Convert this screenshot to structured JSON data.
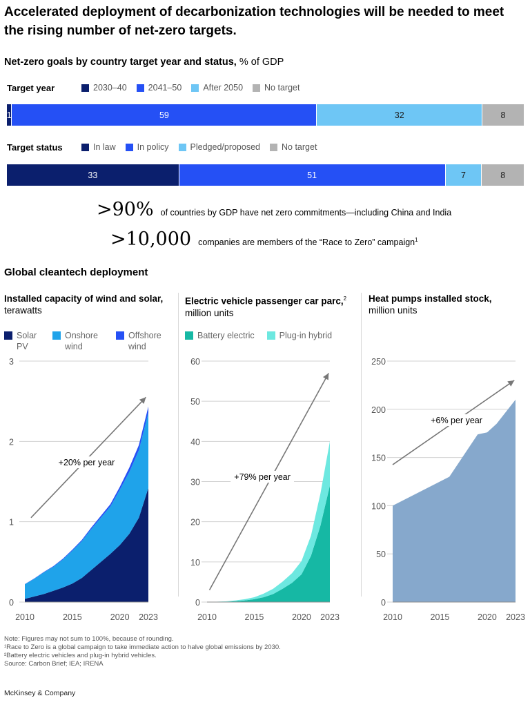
{
  "headline": "Accelerated deployment of decarbonization technologies will be needed to meet the rising number of net-zero targets.",
  "subtitle": {
    "bold": "Net-zero goals by country target year and status,",
    "unit": "% of GDP"
  },
  "target_year": {
    "label": "Target year",
    "legend": [
      "2030–40",
      "2041–50",
      "After 2050",
      "No target"
    ],
    "colors": [
      "#0b1f6d",
      "#2550f5",
      "#6ec6f5",
      "#b3b3b3"
    ],
    "text_colors": [
      "#ffffff",
      "#ffffff",
      "#1a1a1a",
      "#1a1a1a"
    ],
    "values": [
      1,
      59,
      32,
      8
    ],
    "labels": [
      "1",
      "59",
      "32",
      "8"
    ]
  },
  "target_status": {
    "label": "Target status",
    "legend": [
      "In law",
      "In policy",
      "Pledged/proposed",
      "No target"
    ],
    "colors": [
      "#0b1f6d",
      "#2550f5",
      "#6ec6f5",
      "#b3b3b3"
    ],
    "text_colors": [
      "#ffffff",
      "#ffffff",
      "#1a1a1a",
      "#1a1a1a"
    ],
    "values": [
      33,
      51,
      7,
      8
    ],
    "labels": [
      "33",
      "51",
      "7",
      "8"
    ]
  },
  "stats": [
    {
      "big": ">90%",
      "text": "of countries by GDP have net zero commitments—including China and India",
      "sup": ""
    },
    {
      "big": ">10,000",
      "text": "companies are members of the “Race to Zero” campaign",
      "sup": "1"
    }
  ],
  "section_title": "Global cleantech deployment",
  "chart_data": [
    {
      "type": "area",
      "title": "Installed capacity of wind and solar,",
      "title_sup": "",
      "unit": "terawatts",
      "x": [
        2010,
        2011,
        2012,
        2013,
        2014,
        2015,
        2016,
        2017,
        2018,
        2019,
        2020,
        2021,
        2022,
        2023
      ],
      "x_ticks": [
        "2010",
        "2015",
        "2020",
        "2023"
      ],
      "ylim": [
        0,
        3
      ],
      "y_ticks": [
        "0",
        "1",
        "2",
        "3"
      ],
      "stacked": true,
      "series": [
        {
          "name": "Solar PV",
          "color": "#0b1f6d",
          "values": [
            0.04,
            0.07,
            0.1,
            0.14,
            0.18,
            0.23,
            0.3,
            0.4,
            0.5,
            0.6,
            0.71,
            0.85,
            1.05,
            1.42
          ]
        },
        {
          "name": "Onshore wind",
          "color": "#1fa3ea",
          "values": [
            0.18,
            0.22,
            0.27,
            0.3,
            0.35,
            0.41,
            0.46,
            0.51,
            0.55,
            0.59,
            0.69,
            0.77,
            0.84,
            0.94
          ]
        },
        {
          "name": "Offshore wind",
          "color": "#2550f5",
          "values": [
            0.003,
            0.004,
            0.005,
            0.007,
            0.009,
            0.012,
            0.014,
            0.019,
            0.023,
            0.028,
            0.035,
            0.055,
            0.065,
            0.075
          ]
        }
      ],
      "annotation": "+20% per year"
    },
    {
      "type": "area",
      "title": "Electric vehicle passenger car parc,",
      "title_sup": "2",
      "unit": "million units",
      "x": [
        2010,
        2011,
        2012,
        2013,
        2014,
        2015,
        2016,
        2017,
        2018,
        2019,
        2020,
        2021,
        2022,
        2023
      ],
      "x_ticks": [
        "2010",
        "2015",
        "2020",
        "2023"
      ],
      "ylim": [
        0,
        60
      ],
      "y_ticks": [
        "0",
        "10",
        "20",
        "30",
        "40",
        "50",
        "60"
      ],
      "stacked": true,
      "series": [
        {
          "name": "Battery electric",
          "color": "#16b8a4",
          "values": [
            0.02,
            0.05,
            0.1,
            0.2,
            0.4,
            0.7,
            1.2,
            2.0,
            3.3,
            4.8,
            6.9,
            11.5,
            19.0,
            29.0
          ]
        },
        {
          "name": "Plug-in hybrid",
          "color": "#6de8e0",
          "values": [
            0.01,
            0.03,
            0.08,
            0.2,
            0.3,
            0.5,
            0.9,
            1.3,
            1.8,
            2.4,
            3.3,
            5.0,
            8.0,
            11.0
          ]
        }
      ],
      "annotation": "+79% per year"
    },
    {
      "type": "area",
      "title": "Heat pumps installed stock,",
      "title_sup": "",
      "unit": "million units",
      "x": [
        2010,
        2016,
        2019,
        2020,
        2021,
        2023
      ],
      "x_ticks": [
        "2010",
        "2015",
        "2020",
        "2023"
      ],
      "ylim": [
        0,
        250
      ],
      "y_ticks": [
        "0",
        "50",
        "100",
        "150",
        "200",
        "250"
      ],
      "stacked": false,
      "series": [
        {
          "name": "Heat pumps",
          "color": "#86a8cc",
          "values": [
            100,
            130,
            174,
            176,
            185,
            210
          ]
        }
      ],
      "annotation": "+6% per year"
    }
  ],
  "notes": [
    "Note: Figures may not sum to 100%, because of rounding.",
    "¹Race to Zero is a global campaign to take immediate action to halve global emissions by 2030.",
    "²Battery electric vehicles and plug-in hybrid vehicles.",
    "Source: Carbon Brief; IEA; IRENA"
  ],
  "footer": "McKinsey & Company"
}
